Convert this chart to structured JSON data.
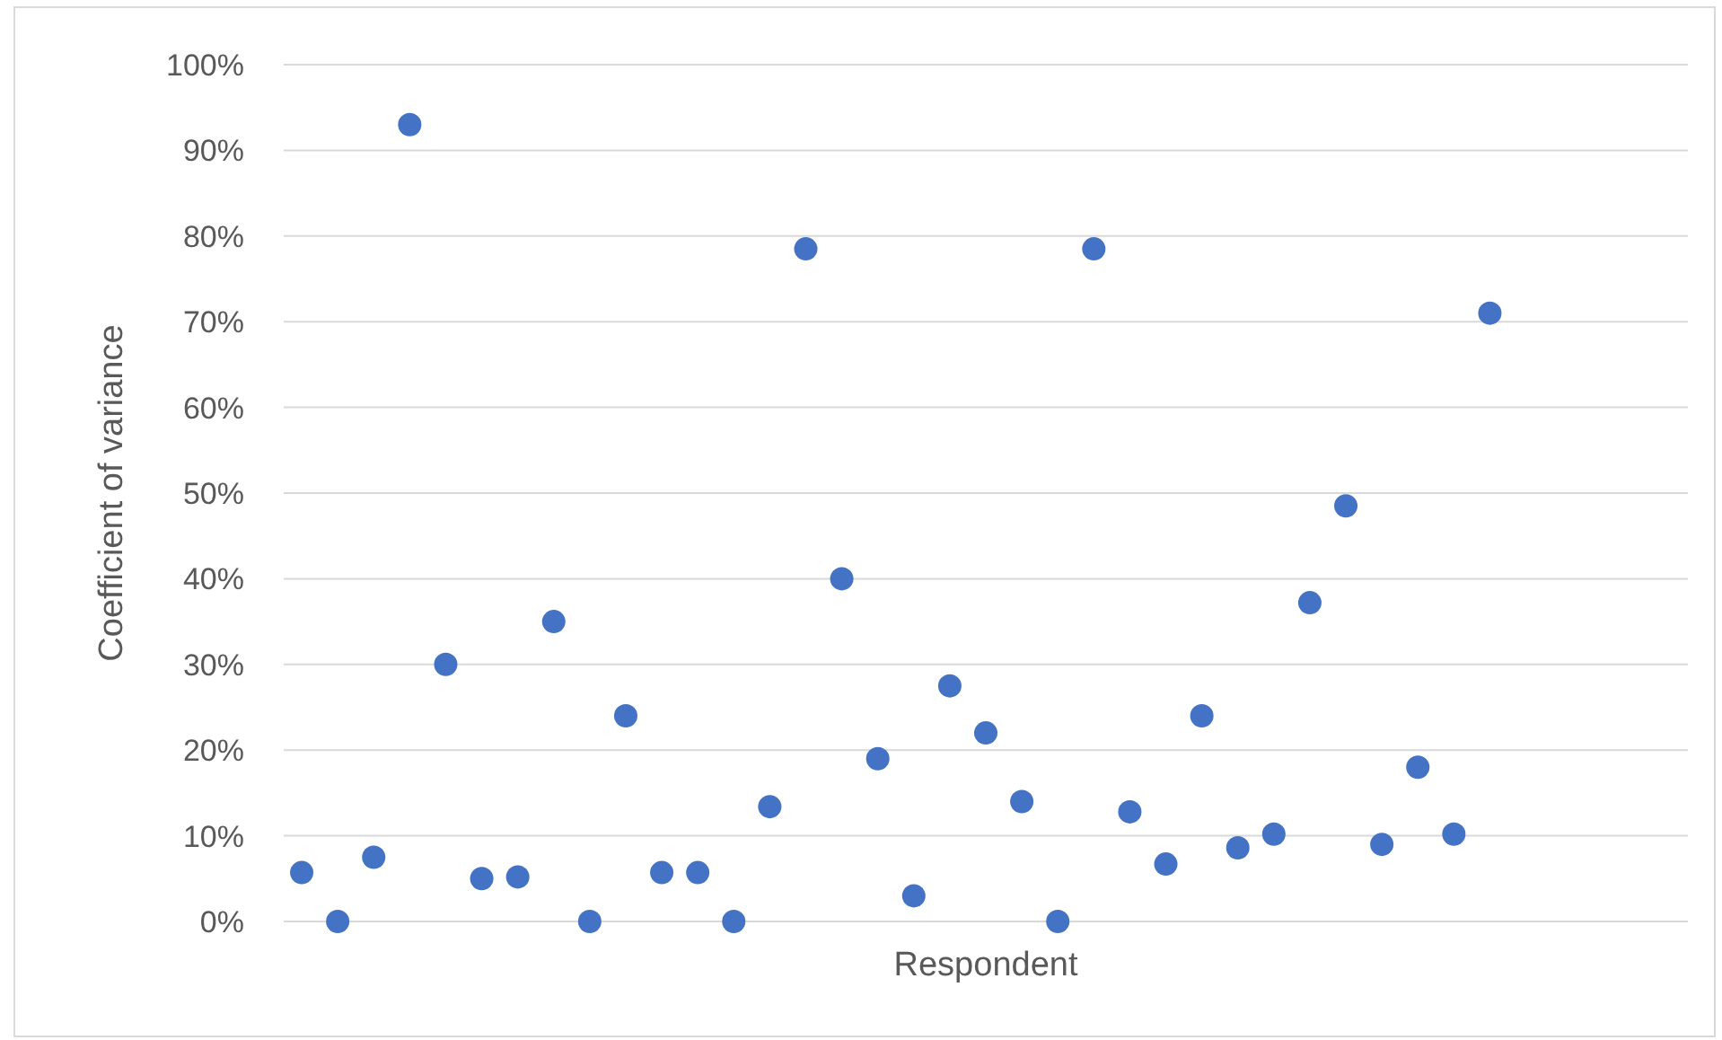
{
  "chart_data": {
    "type": "scatter",
    "xlabel": "Respondent",
    "ylabel": "Coefficient of variance",
    "categories": [
      null,
      null,
      null,
      null,
      null,
      null,
      null,
      null,
      null,
      null,
      null,
      null,
      null,
      null,
      null,
      null,
      null,
      null,
      null,
      null,
      null,
      null,
      null,
      null,
      null,
      null,
      null,
      null,
      null,
      null,
      null,
      null,
      null,
      null,
      null,
      null,
      null,
      null,
      null
    ],
    "series": [
      {
        "color": "#4472c4",
        "values": [
          5.7,
          0,
          7.5,
          93,
          30,
          5,
          5.2,
          35,
          0,
          24,
          5.7,
          5.7,
          0,
          13.4,
          78.5,
          40,
          19,
          3,
          27.5,
          22,
          14,
          0,
          78.5,
          12.8,
          6.7,
          24,
          8.6,
          10.2,
          37.2,
          48.5,
          9,
          18,
          10.2,
          71,
          null,
          null,
          null,
          null,
          null
        ]
      }
    ],
    "ylim": [
      0,
      100
    ],
    "yticks": [
      {
        "value": 0,
        "label": "0%"
      },
      {
        "value": 10,
        "label": "10%"
      },
      {
        "value": 20,
        "label": "20%"
      },
      {
        "value": 30,
        "label": "30%"
      },
      {
        "value": 40,
        "label": "40%"
      },
      {
        "value": 50,
        "label": "50%"
      },
      {
        "value": 60,
        "label": "60%"
      },
      {
        "value": 70,
        "label": "70%"
      },
      {
        "value": 80,
        "label": "80%"
      },
      {
        "value": 90,
        "label": "90%"
      },
      {
        "value": 100,
        "label": "100%"
      }
    ],
    "grid": "y",
    "marker": "circle"
  }
}
